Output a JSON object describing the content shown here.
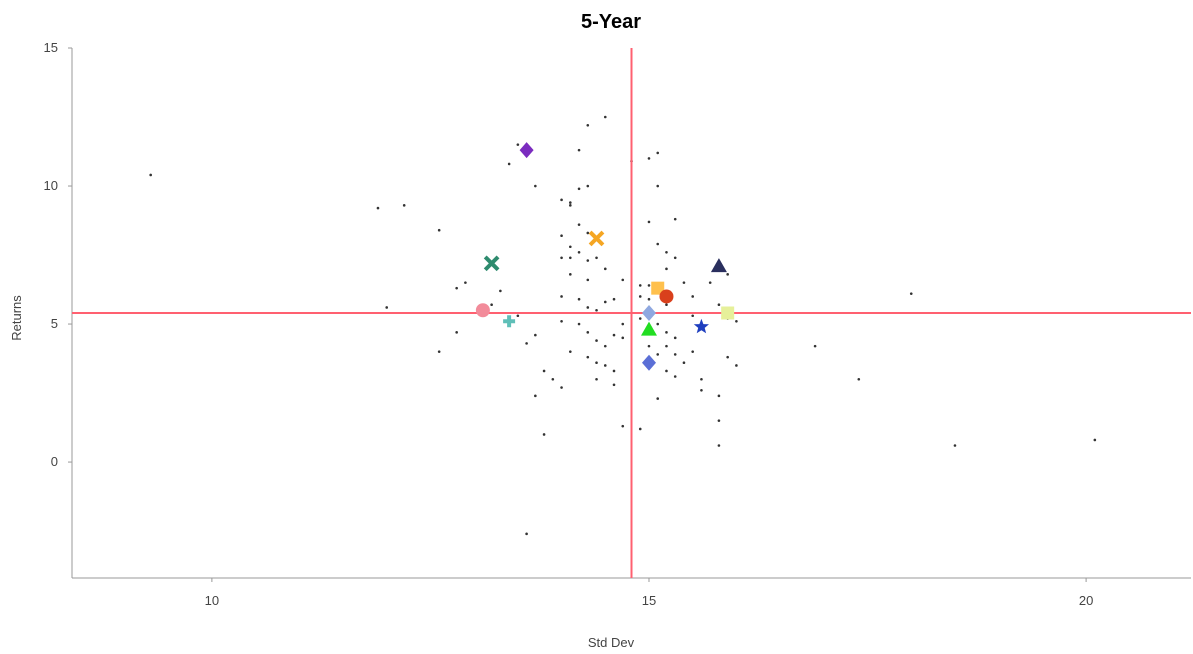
{
  "chart_data": {
    "type": "scatter",
    "title": "5-Year",
    "xlabel": "Std Dev",
    "ylabel": "Returns",
    "xlim": [
      8.4,
      21.2
    ],
    "ylim": [
      -4.2,
      15.0
    ],
    "xticks": [
      10,
      15,
      20
    ],
    "yticks": [
      0,
      5,
      10,
      15
    ],
    "grid": false,
    "reference_lines": {
      "x": 14.8,
      "y": 5.4,
      "color": "#ff6070"
    },
    "colors": {
      "background_points": "#333333",
      "axis_line": "#999999",
      "text": "#444444"
    },
    "background_points": [
      [
        9.3,
        10.4
      ],
      [
        11.9,
        9.2
      ],
      [
        12.2,
        9.3
      ],
      [
        12.6,
        8.4
      ],
      [
        12.0,
        5.6
      ],
      [
        12.8,
        6.3
      ],
      [
        12.9,
        6.5
      ],
      [
        12.8,
        4.7
      ],
      [
        12.6,
        4.0
      ],
      [
        13.2,
        5.7
      ],
      [
        13.3,
        6.2
      ],
      [
        13.4,
        10.8
      ],
      [
        13.5,
        11.5
      ],
      [
        13.7,
        10.0
      ],
      [
        13.5,
        5.3
      ],
      [
        13.6,
        4.3
      ],
      [
        13.7,
        4.6
      ],
      [
        13.7,
        2.4
      ],
      [
        13.6,
        -2.6
      ],
      [
        13.8,
        3.3
      ],
      [
        13.9,
        3.0
      ],
      [
        14.0,
        2.7
      ],
      [
        13.8,
        1.0
      ],
      [
        14.0,
        9.5
      ],
      [
        14.1,
        9.4
      ],
      [
        14.1,
        9.3
      ],
      [
        14.2,
        11.3
      ],
      [
        14.2,
        9.9
      ],
      [
        14.3,
        10.0
      ],
      [
        14.3,
        12.2
      ],
      [
        14.5,
        12.5
      ],
      [
        14.0,
        8.2
      ],
      [
        14.2,
        8.6
      ],
      [
        14.3,
        8.3
      ],
      [
        14.1,
        7.8
      ],
      [
        14.0,
        7.4
      ],
      [
        14.1,
        7.4
      ],
      [
        14.2,
        7.6
      ],
      [
        14.3,
        7.3
      ],
      [
        14.4,
        7.4
      ],
      [
        14.1,
        6.8
      ],
      [
        14.3,
        6.6
      ],
      [
        14.5,
        7.0
      ],
      [
        14.0,
        6.0
      ],
      [
        14.2,
        5.9
      ],
      [
        14.3,
        5.6
      ],
      [
        14.4,
        5.5
      ],
      [
        14.5,
        5.8
      ],
      [
        14.6,
        5.9
      ],
      [
        14.0,
        5.1
      ],
      [
        14.2,
        5.0
      ],
      [
        14.3,
        4.7
      ],
      [
        14.4,
        4.4
      ],
      [
        14.5,
        4.2
      ],
      [
        14.6,
        4.6
      ],
      [
        14.1,
        4.0
      ],
      [
        14.3,
        3.8
      ],
      [
        14.4,
        3.6
      ],
      [
        14.5,
        3.5
      ],
      [
        14.6,
        3.3
      ],
      [
        14.4,
        3.0
      ],
      [
        14.6,
        2.8
      ],
      [
        14.7,
        5.0
      ],
      [
        14.7,
        4.5
      ],
      [
        14.7,
        6.6
      ],
      [
        14.8,
        10.9
      ],
      [
        14.7,
        1.3
      ],
      [
        14.9,
        1.2
      ],
      [
        14.9,
        6.4
      ],
      [
        14.9,
        6.0
      ],
      [
        14.9,
        5.2
      ],
      [
        15.0,
        5.9
      ],
      [
        15.0,
        4.2
      ],
      [
        15.1,
        3.9
      ],
      [
        15.0,
        11.0
      ],
      [
        15.1,
        11.2
      ],
      [
        15.1,
        10.0
      ],
      [
        15.0,
        8.7
      ],
      [
        15.1,
        7.9
      ],
      [
        15.2,
        7.6
      ],
      [
        15.3,
        7.4
      ],
      [
        15.2,
        7.0
      ],
      [
        15.3,
        8.8
      ],
      [
        15.0,
        6.4
      ],
      [
        15.2,
        5.7
      ],
      [
        15.1,
        5.0
      ],
      [
        15.2,
        4.7
      ],
      [
        15.3,
        4.5
      ],
      [
        15.2,
        4.2
      ],
      [
        15.3,
        3.9
      ],
      [
        15.4,
        3.6
      ],
      [
        15.2,
        3.3
      ],
      [
        15.3,
        3.1
      ],
      [
        15.1,
        2.3
      ],
      [
        15.4,
        6.5
      ],
      [
        15.5,
        6.0
      ],
      [
        15.5,
        5.3
      ],
      [
        15.6,
        4.9
      ],
      [
        15.5,
        4.0
      ],
      [
        15.6,
        3.0
      ],
      [
        15.6,
        2.6
      ],
      [
        15.8,
        2.4
      ],
      [
        15.8,
        1.5
      ],
      [
        15.8,
        0.6
      ],
      [
        15.7,
        6.5
      ],
      [
        15.9,
        6.8
      ],
      [
        15.8,
        5.7
      ],
      [
        15.9,
        5.2
      ],
      [
        16.0,
        5.1
      ],
      [
        15.9,
        3.8
      ],
      [
        16.0,
        3.5
      ],
      [
        16.9,
        4.2
      ],
      [
        17.4,
        3.0
      ],
      [
        18.0,
        6.1
      ],
      [
        18.5,
        0.6
      ],
      [
        20.1,
        0.8
      ]
    ],
    "series": [
      {
        "marker": "diamond",
        "color": "#7b2cbf",
        "x": 13.6,
        "y": 11.3
      },
      {
        "marker": "x",
        "color": "#f5a623",
        "x": 14.4,
        "y": 8.1
      },
      {
        "marker": "x",
        "color": "#2e8b6e",
        "x": 13.2,
        "y": 7.2
      },
      {
        "marker": "triangle",
        "color": "#2a2f5e",
        "x": 15.8,
        "y": 7.1
      },
      {
        "marker": "square",
        "color": "#ffc04d",
        "x": 15.1,
        "y": 6.3
      },
      {
        "marker": "circle",
        "color": "#d9401c",
        "x": 15.2,
        "y": 6.0
      },
      {
        "marker": "circle",
        "color": "#f28b9a",
        "x": 13.1,
        "y": 5.5
      },
      {
        "marker": "plus",
        "color": "#5fbfb8",
        "x": 13.4,
        "y": 5.1
      },
      {
        "marker": "diamond",
        "color": "#8fa8e0",
        "x": 15.0,
        "y": 5.4
      },
      {
        "marker": "triangle",
        "color": "#22dd22",
        "x": 15.0,
        "y": 4.8
      },
      {
        "marker": "star",
        "color": "#1f3fbf",
        "x": 15.6,
        "y": 4.9
      },
      {
        "marker": "diamond",
        "color": "#5b6fd6",
        "x": 15.0,
        "y": 3.6
      },
      {
        "marker": "square",
        "color": "#e6f09a",
        "x": 15.9,
        "y": 5.4
      }
    ]
  }
}
